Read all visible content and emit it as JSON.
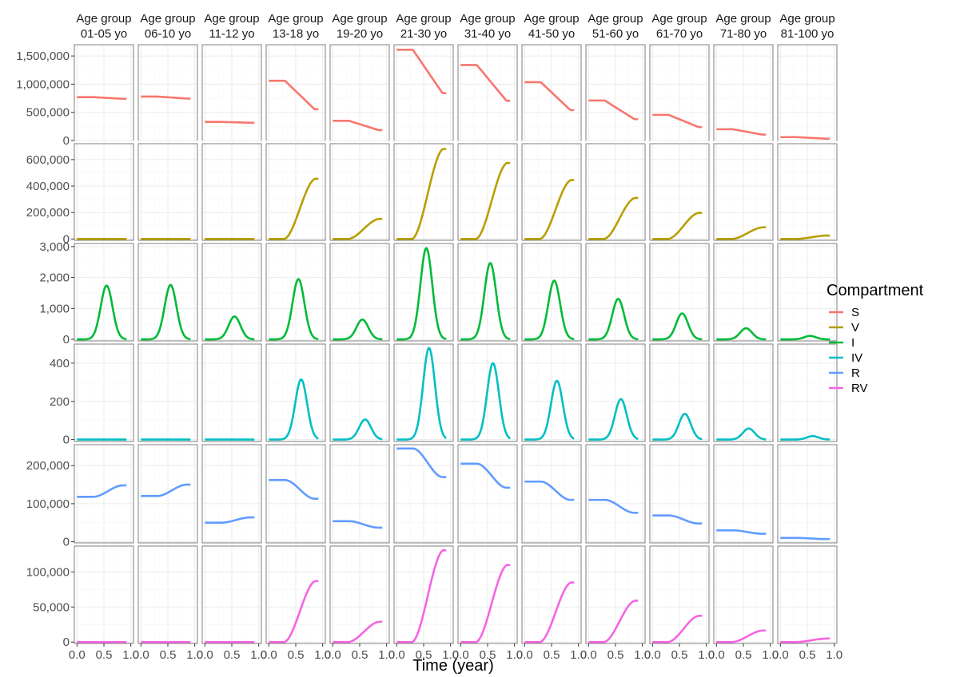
{
  "chart_data": {
    "type": "line",
    "facet_layout": "grid",
    "xlabel": "Time (year)",
    "ylabel": "",
    "xlim": [
      0,
      1
    ],
    "x_ticks": [
      "0.0",
      "0.5",
      "1.0"
    ],
    "grid": true,
    "legend": {
      "title": "Compartment",
      "placement": "right",
      "entries": [
        {
          "name": "S",
          "color": "#F8766D"
        },
        {
          "name": "V",
          "color": "#B79F00"
        },
        {
          "name": "I",
          "color": "#00BA38"
        },
        {
          "name": "IV",
          "color": "#00BFC4"
        },
        {
          "name": "R",
          "color": "#619CFF"
        },
        {
          "name": "RV",
          "color": "#F564E3"
        }
      ]
    },
    "column_strips": [
      [
        "Age group",
        "01-05 yo"
      ],
      [
        "Age group",
        "06-10 yo"
      ],
      [
        "Age group",
        "11-12 yo"
      ],
      [
        "Age group",
        "13-18 yo"
      ],
      [
        "Age group",
        "19-20 yo"
      ],
      [
        "Age group",
        "21-30 yo"
      ],
      [
        "Age group",
        "31-40 yo"
      ],
      [
        "Age group",
        "41-50 yo"
      ],
      [
        "Age group",
        "51-60 yo"
      ],
      [
        "Age group",
        "61-70 yo"
      ],
      [
        "Age group",
        "71-80 yo"
      ],
      [
        "Age group",
        "81-100 yo"
      ]
    ],
    "rows": [
      {
        "compartment": "S",
        "ylim": [
          0,
          1700000
        ],
        "y_ticks": [
          {
            "value": 0,
            "label": "0"
          },
          {
            "value": 500000,
            "label": "500,000"
          },
          {
            "value": 1000000,
            "label": "1,000,000"
          },
          {
            "value": 1500000,
            "label": "1,500,000"
          }
        ],
        "curve": "s",
        "panels": [
          {
            "start": 770000,
            "end": 740000
          },
          {
            "start": 780000,
            "end": 745000
          },
          {
            "start": 330000,
            "end": 315000
          },
          {
            "start": 1060000,
            "end": 555000
          },
          {
            "start": 350000,
            "end": 185000
          },
          {
            "start": 1610000,
            "end": 840000
          },
          {
            "start": 1340000,
            "end": 705000
          },
          {
            "start": 1035000,
            "end": 540000
          },
          {
            "start": 710000,
            "end": 380000
          },
          {
            "start": 455000,
            "end": 240000
          },
          {
            "start": 200000,
            "end": 105000
          },
          {
            "start": 60000,
            "end": 32000
          }
        ]
      },
      {
        "compartment": "V",
        "ylim": [
          -10000,
          720000
        ],
        "y_ticks": [
          {
            "value": 0,
            "label": "0"
          },
          {
            "value": 200000,
            "label": "200,000"
          },
          {
            "value": 400000,
            "label": "400,000"
          },
          {
            "value": 600000,
            "label": "600,000"
          }
        ],
        "curve": "ramp",
        "panels": [
          {
            "start": 0,
            "end": 0
          },
          {
            "start": 0,
            "end": 0
          },
          {
            "start": 0,
            "end": 0
          },
          {
            "start": 0,
            "end": 455000
          },
          {
            "start": 0,
            "end": 152000
          },
          {
            "start": 0,
            "end": 680000
          },
          {
            "start": 0,
            "end": 575000
          },
          {
            "start": 0,
            "end": 445000
          },
          {
            "start": 0,
            "end": 310000
          },
          {
            "start": 0,
            "end": 198000
          },
          {
            "start": 0,
            "end": 88000
          },
          {
            "start": 0,
            "end": 26000
          }
        ]
      },
      {
        "compartment": "I",
        "ylim": [
          -50,
          3100
        ],
        "y_ticks": [
          {
            "value": 0,
            "label": "0"
          },
          {
            "value": 1000,
            "label": "1,000"
          },
          {
            "value": 2000,
            "label": "2,000"
          },
          {
            "value": 3000,
            "label": "3,000"
          }
        ],
        "curve": "peak",
        "peak_time": [
          0.55,
          0.55,
          0.55,
          0.55,
          0.55,
          0.55,
          0.55,
          0.55,
          0.55,
          0.55,
          0.55,
          0.55
        ],
        "panels": [
          {
            "peak": 1740
          },
          {
            "peak": 1760
          },
          {
            "peak": 740
          },
          {
            "peak": 1950
          },
          {
            "peak": 640
          },
          {
            "peak": 2950
          },
          {
            "peak": 2470
          },
          {
            "peak": 1900
          },
          {
            "peak": 1310
          },
          {
            "peak": 840
          },
          {
            "peak": 360
          },
          {
            "peak": 110
          }
        ]
      },
      {
        "compartment": "IV",
        "ylim": [
          -10,
          500
        ],
        "y_ticks": [
          {
            "value": 0,
            "label": "0"
          },
          {
            "value": 200,
            "label": "200"
          },
          {
            "value": 400,
            "label": "400"
          }
        ],
        "curve": "peak",
        "peak_time": [
          0.6,
          0.6,
          0.6,
          0.6,
          0.6,
          0.6,
          0.6,
          0.6,
          0.6,
          0.6,
          0.6,
          0.6
        ],
        "panels": [
          {
            "peak": 0
          },
          {
            "peak": 0
          },
          {
            "peak": 0
          },
          {
            "peak": 315
          },
          {
            "peak": 105
          },
          {
            "peak": 480
          },
          {
            "peak": 400
          },
          {
            "peak": 308
          },
          {
            "peak": 212
          },
          {
            "peak": 135
          },
          {
            "peak": 58
          },
          {
            "peak": 18
          }
        ]
      },
      {
        "compartment": "R",
        "ylim": [
          -3000,
          255000
        ],
        "y_ticks": [
          {
            "value": 0,
            "label": "0"
          },
          {
            "value": 100000,
            "label": "100,000"
          },
          {
            "value": 200000,
            "label": "200,000"
          }
        ],
        "curve": "r",
        "panels": [
          {
            "start": 118000,
            "end": 148000
          },
          {
            "start": 120000,
            "end": 150000
          },
          {
            "start": 50000,
            "end": 64000
          },
          {
            "start": 162000,
            "end": 113000
          },
          {
            "start": 54000,
            "end": 37000
          },
          {
            "start": 245000,
            "end": 170000
          },
          {
            "start": 205000,
            "end": 142000
          },
          {
            "start": 158000,
            "end": 110000
          },
          {
            "start": 110000,
            "end": 76000
          },
          {
            "start": 69000,
            "end": 48000
          },
          {
            "start": 30000,
            "end": 21000
          },
          {
            "start": 10000,
            "end": 7000
          }
        ]
      },
      {
        "compartment": "RV",
        "ylim": [
          -2000,
          137000
        ],
        "y_ticks": [
          {
            "value": 0,
            "label": "0"
          },
          {
            "value": 50000,
            "label": "50,000"
          },
          {
            "value": 100000,
            "label": "100,000"
          }
        ],
        "curve": "ramp",
        "panels": [
          {
            "start": 0,
            "end": 0
          },
          {
            "start": 0,
            "end": 0
          },
          {
            "start": 0,
            "end": 0
          },
          {
            "start": 0,
            "end": 87000
          },
          {
            "start": 0,
            "end": 29000
          },
          {
            "start": 0,
            "end": 131000
          },
          {
            "start": 0,
            "end": 110000
          },
          {
            "start": 0,
            "end": 85000
          },
          {
            "start": 0,
            "end": 59000
          },
          {
            "start": 0,
            "end": 37500
          },
          {
            "start": 0,
            "end": 16500
          },
          {
            "start": 0,
            "end": 5000
          }
        ]
      }
    ]
  }
}
